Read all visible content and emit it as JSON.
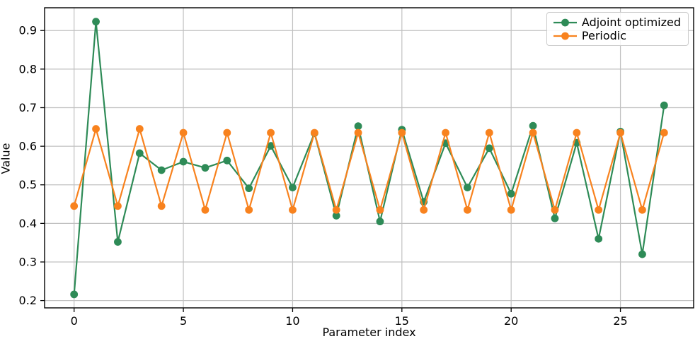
{
  "figure": {
    "background": "#ffffff"
  },
  "chart_data": {
    "type": "line",
    "title": "",
    "xlabel": "Parameter index",
    "ylabel": "Value",
    "x": [
      0,
      1,
      2,
      3,
      4,
      5,
      6,
      7,
      8,
      9,
      10,
      11,
      12,
      13,
      14,
      15,
      16,
      17,
      18,
      19,
      20,
      21,
      22,
      23,
      24,
      25,
      26,
      27
    ],
    "series": [
      {
        "name": "Adjoint optimized",
        "color": "#2e8b57",
        "marker": "circle",
        "values": [
          0.216,
          0.923,
          0.352,
          0.582,
          0.538,
          0.56,
          0.544,
          0.563,
          0.491,
          0.601,
          0.493,
          0.634,
          0.42,
          0.652,
          0.405,
          0.643,
          0.456,
          0.608,
          0.493,
          0.595,
          0.477,
          0.653,
          0.413,
          0.609,
          0.36,
          0.638,
          0.32,
          0.706
        ]
      },
      {
        "name": "Periodic",
        "color": "#f8821e",
        "marker": "circle",
        "values": [
          0.445,
          0.645,
          0.445,
          0.645,
          0.445,
          0.635,
          0.435,
          0.635,
          0.435,
          0.635,
          0.435,
          0.635,
          0.435,
          0.635,
          0.435,
          0.635,
          0.435,
          0.635,
          0.435,
          0.635,
          0.435,
          0.635,
          0.435,
          0.635,
          0.435,
          0.635,
          0.435,
          0.635
        ]
      }
    ],
    "xlim": [
      -1.35,
      28.35
    ],
    "ylim": [
      0.181,
      0.959
    ],
    "xticks": [
      0,
      5,
      10,
      15,
      20,
      25
    ],
    "xtick_labels": [
      "0",
      "5",
      "10",
      "15",
      "20",
      "25"
    ],
    "yticks": [
      0.2,
      0.3,
      0.4,
      0.5,
      0.6,
      0.7,
      0.8,
      0.9
    ],
    "ytick_labels": [
      "0.2",
      "0.3",
      "0.4",
      "0.5",
      "0.6",
      "0.7",
      "0.8",
      "0.9"
    ],
    "grid": true,
    "legend": {
      "position": "upper right",
      "entries": [
        "Adjoint optimized",
        "Periodic"
      ]
    }
  },
  "styles": {
    "grid_color": "#c0c0c0",
    "spine_color": "#000000",
    "tick_color": "#000000",
    "text_color": "#000000",
    "legend_border": "#cccccc",
    "legend_bg": "#ffffff"
  }
}
